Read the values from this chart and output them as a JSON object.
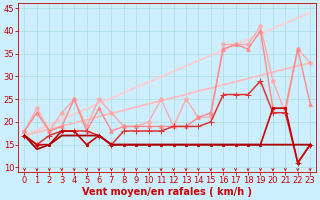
{
  "xlabel": "Vent moyen/en rafales ( km/h )",
  "bg_color": "#cceeff",
  "grid_color": "#aadddd",
  "xlim": [
    -0.5,
    23.5
  ],
  "ylim": [
    9,
    46
  ],
  "yticks": [
    10,
    15,
    20,
    25,
    30,
    35,
    40,
    45
  ],
  "xticks": [
    0,
    1,
    2,
    3,
    4,
    5,
    6,
    7,
    8,
    9,
    10,
    11,
    12,
    13,
    14,
    15,
    16,
    17,
    18,
    19,
    20,
    21,
    22,
    23
  ],
  "series": [
    {
      "x": [
        0,
        23
      ],
      "y": [
        17,
        33
      ],
      "color": "#ffbbbb",
      "lw": 1.3,
      "marker": null,
      "ms": 0,
      "zorder": 2
    },
    {
      "x": [
        0,
        23
      ],
      "y": [
        17,
        44
      ],
      "color": "#ffcccc",
      "lw": 1.3,
      "marker": null,
      "ms": 0,
      "zorder": 2
    },
    {
      "x": [
        0,
        1,
        2,
        3,
        4,
        5,
        6,
        7,
        8,
        9,
        10,
        11,
        12,
        13,
        14,
        15,
        16,
        17,
        18,
        19,
        20,
        21,
        22,
        23
      ],
      "y": [
        18,
        23,
        18,
        22,
        25,
        19,
        25,
        22,
        19,
        19,
        20,
        25,
        19,
        25,
        21,
        21,
        37,
        37,
        37,
        41,
        29,
        22,
        36,
        33
      ],
      "color": "#ffaaaa",
      "lw": 1.0,
      "marker": "o",
      "ms": 2.5,
      "zorder": 3
    },
    {
      "x": [
        0,
        1,
        2,
        3,
        4,
        5,
        6,
        7,
        8,
        9,
        10,
        11,
        12,
        13,
        14,
        15,
        16,
        17,
        18,
        19,
        20,
        21,
        22,
        23
      ],
      "y": [
        18,
        22,
        18,
        19,
        25,
        18,
        23,
        18,
        19,
        19,
        19,
        19,
        19,
        19,
        21,
        22,
        36,
        37,
        36,
        40,
        23,
        23,
        36,
        24
      ],
      "color": "#ff8888",
      "lw": 1.0,
      "marker": "^",
      "ms": 2.5,
      "zorder": 3
    },
    {
      "x": [
        0,
        1,
        2,
        3,
        4,
        5,
        6,
        7,
        8,
        9,
        10,
        11,
        12,
        13,
        14,
        15,
        16,
        17,
        18,
        19,
        20,
        21,
        22,
        23
      ],
      "y": [
        17,
        15,
        17,
        18,
        18,
        18,
        17,
        15,
        18,
        18,
        18,
        18,
        19,
        19,
        19,
        20,
        26,
        26,
        26,
        29,
        22,
        22,
        11,
        15
      ],
      "color": "#dd3333",
      "lw": 1.1,
      "marker": "+",
      "ms": 4,
      "zorder": 4
    },
    {
      "x": [
        0,
        1,
        2,
        3,
        4,
        5,
        6,
        7,
        8,
        9,
        10,
        11,
        12,
        13,
        14,
        15,
        16,
        17,
        18,
        19,
        20,
        21,
        22,
        23
      ],
      "y": [
        17,
        15,
        15,
        18,
        18,
        15,
        17,
        15,
        15,
        15,
        15,
        15,
        15,
        15,
        15,
        15,
        15,
        15,
        15,
        15,
        23,
        23,
        11,
        15
      ],
      "color": "#cc0000",
      "lw": 1.2,
      "marker": "s",
      "ms": 2,
      "zorder": 5
    },
    {
      "x": [
        0,
        1,
        2,
        3,
        4,
        5,
        6,
        7,
        8,
        9,
        10,
        11,
        12,
        13,
        14,
        15,
        16,
        17,
        18,
        19,
        20,
        21,
        22,
        23
      ],
      "y": [
        17,
        14,
        15,
        17,
        17,
        17,
        17,
        15,
        15,
        15,
        15,
        15,
        15,
        15,
        15,
        15,
        15,
        15,
        15,
        15,
        15,
        15,
        15,
        15
      ],
      "color": "#aa0000",
      "lw": 1.3,
      "marker": null,
      "ms": 0,
      "zorder": 5
    }
  ],
  "arrow_color": "#cc0000",
  "tick_color": "#cc0000",
  "label_fontsize": 6,
  "xlabel_fontsize": 7
}
